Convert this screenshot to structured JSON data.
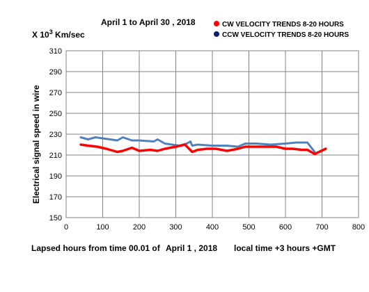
{
  "chart_data": {
    "type": "line",
    "title": "April 1 to April 30 ,  2018",
    "units_prefix": "X 10",
    "units_exp": "3",
    "units_suffix": " Km/sec",
    "ylabel": "Electrical signal speed in wire",
    "xlabel_part1": "Lapsed hours from time 00.01 of",
    "xlabel_part2": "April 1 , 2018",
    "xlabel_part3": "local time +3 hours +GMT",
    "xlim": [
      0,
      800
    ],
    "ylim": [
      150,
      310
    ],
    "xticks": [
      0,
      100,
      200,
      300,
      400,
      500,
      600,
      700,
      800
    ],
    "yticks": [
      150,
      170,
      190,
      210,
      230,
      250,
      270,
      290,
      310
    ],
    "grid": true,
    "legend_position": "top-right",
    "series": [
      {
        "name": "CW VELOCITY TRENDS 8-20 HOURS",
        "color": "#ff0000",
        "marker_color": "#ff0000",
        "x": [
          40,
          60,
          85,
          110,
          140,
          155,
          180,
          200,
          230,
          250,
          270,
          300,
          325,
          345,
          360,
          385,
          410,
          440,
          470,
          490,
          520,
          550,
          575,
          600,
          620,
          645,
          660,
          680,
          710
        ],
        "y": [
          220,
          219,
          218,
          216,
          213,
          214,
          217,
          214,
          215,
          214,
          216,
          218,
          220,
          213,
          215,
          216,
          216,
          214,
          216,
          218,
          218,
          218,
          218,
          216,
          216,
          215,
          215,
          211,
          216
        ]
      },
      {
        "name": "CCW VELOCITY TRENDS 8-20 HOURS",
        "color": "#4f81bd",
        "marker_color": "#0d1c6b",
        "x": [
          40,
          60,
          80,
          100,
          140,
          155,
          180,
          200,
          240,
          250,
          270,
          310,
          330,
          340,
          345,
          360,
          400,
          440,
          470,
          490,
          520,
          560,
          600,
          630,
          660,
          680
        ],
        "y": [
          227,
          225,
          227,
          226,
          224,
          227,
          224,
          224,
          223,
          225,
          221,
          219,
          221,
          223,
          219,
          220,
          219,
          219,
          218,
          221,
          221,
          220,
          221,
          222,
          222,
          213
        ]
      }
    ]
  }
}
